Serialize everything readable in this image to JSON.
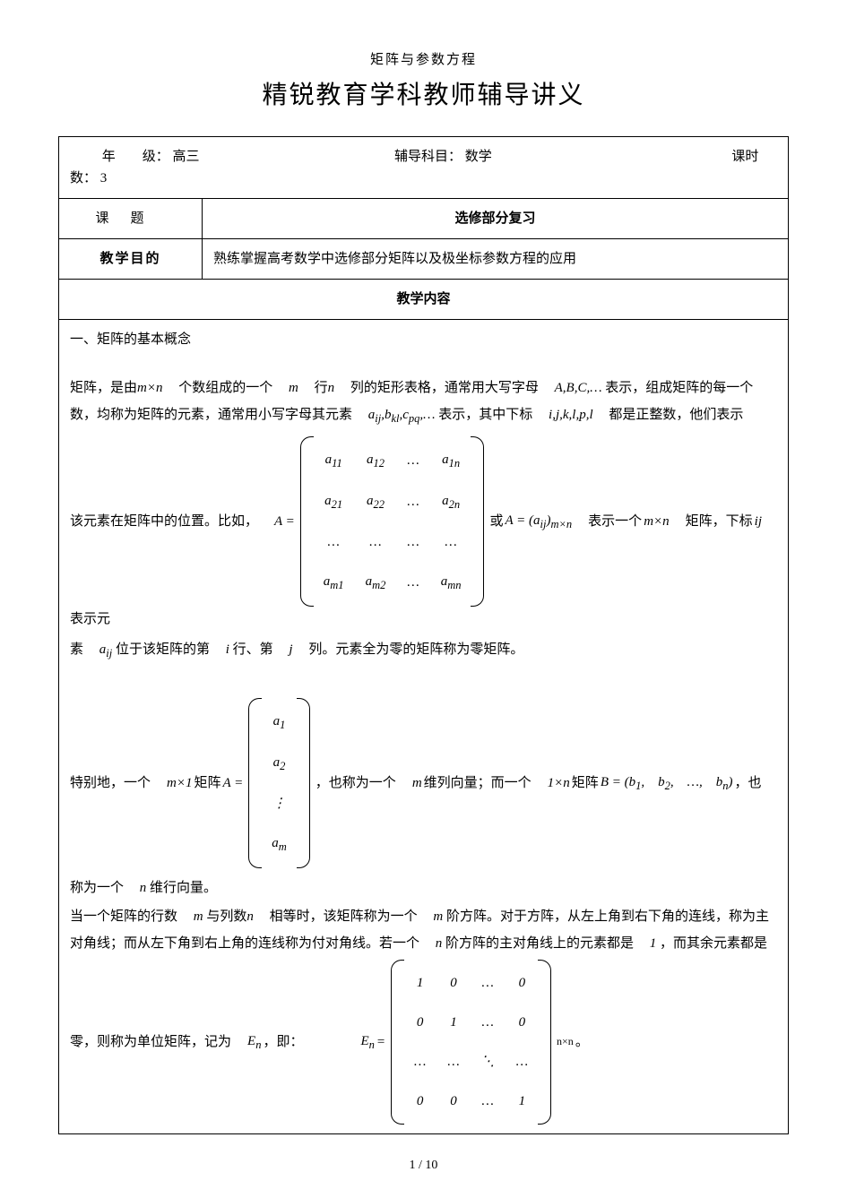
{
  "page": {
    "small_header": "矩阵与参数方程",
    "title": "精锐教育学科教师辅导讲义",
    "footer": "1 / 10"
  },
  "info_row": {
    "grade_label": "年　　级：",
    "grade_value": "高三",
    "subject_label": "辅导科目：",
    "subject_value": "数学",
    "hours_label": "课时数：",
    "hours_value": "3"
  },
  "rows": {
    "topic_label": "课题",
    "topic_value": "选修部分复习",
    "goal_label": "教学目的",
    "goal_value": "熟练掌握高考数学中选修部分矩阵以及极坐标参数方程的应用",
    "content_header": "教学内容"
  },
  "content": {
    "sec1": "一、矩阵的基本概念",
    "p1a": "矩阵，是由",
    "p1b": "个数组成的一个",
    "p1c": "行",
    "p1d": "列的矩形表格，通常用大写字母",
    "p1e": "表示，组成矩阵的每一个",
    "p2a": "数，均称为矩阵的元素，通常用小写字母其元素",
    "p2b": "表示，其中下标",
    "p2c": "都是正整数，他们表示",
    "p3a": "该元素在矩阵中的位置。比如，",
    "p3b": "或",
    "p3c": "表示一个",
    "p3d": "矩阵，下标",
    "p3e": "表示元",
    "p4a": "素",
    "p4b": "位于该矩阵的第",
    "p4c": "行、第",
    "p4d": "列。元素全为零的矩阵称为零矩阵。",
    "p5a": "特别地，一个",
    "p5b": "矩阵",
    "p5c": "，也称为一个",
    "p5d": "维列向量；而一个",
    "p5e": "矩阵",
    "p5f": "，也",
    "p6": "称为一个",
    "p6b": "维行向量。",
    "p7a": "当一个矩阵的行数",
    "p7b": "与列数",
    "p7c": "相等时，该矩阵称为一个",
    "p7d": "阶方阵。对于方阵，从左上角到右下角的连线，称为主",
    "p8a": "对角线；而从左下角到右上角的连线称为付对角线。若一个",
    "p8b": "阶方阵的主对角线上的元素都是",
    "p8c": "，而其余元素都是",
    "p9a": "零，则称为单位矩阵，记为",
    "p9b": "，即："
  },
  "math": {
    "mxn": "m×n",
    "m": "m",
    "n": "n",
    "ABC": "A,B,C,…",
    "aij_etc": "a<sub>ij</sub>,b<sub>kl</sub>,c<sub>pq</sub>,…",
    "ijklpl": "i,j,k,l,p,l",
    "A_eq": "A =",
    "A_paren": "A = (a<sub>ij</sub>)<sub>m×n</sub>",
    "ij": "ij",
    "aij": "a<sub>ij</sub>",
    "i": "i",
    "j": "j",
    "mx1": "m×1",
    "oneXn": "1×n",
    "B_eq": "B = (b<sub>1</sub>,　b<sub>2</sub>,　…,　b<sub>n</sub>)",
    "En": "E<sub>n</sub>",
    "one": "1",
    "nxn_sub": "n×n",
    "matA": {
      "r1": [
        "a<sub>11</sub>",
        "a<sub>12</sub>",
        "…",
        "a<sub>1n</sub>"
      ],
      "r2": [
        "a<sub>21</sub>",
        "a<sub>22</sub>",
        "…",
        "a<sub>2n</sub>"
      ],
      "r3": [
        "…",
        "…",
        "…",
        "…"
      ],
      "r4": [
        "a<sub>m1</sub>",
        "a<sub>m2</sub>",
        "…",
        "a<sub>mn</sub>"
      ]
    },
    "colA": [
      "a<sub>1</sub>",
      "a<sub>2</sub>",
      "⋮",
      "a<sub>m</sub>"
    ],
    "matE": {
      "r1": [
        "1",
        "0",
        "…",
        "0"
      ],
      "r2": [
        "0",
        "1",
        "…",
        "0"
      ],
      "r3": [
        "…",
        "…",
        "⋱",
        "…"
      ],
      "r4": [
        "0",
        "0",
        "…",
        "1"
      ]
    }
  },
  "colors": {
    "text": "#000000",
    "background": "#ffffff",
    "border": "#000000"
  },
  "typography": {
    "body_fontsize": 15,
    "title_fontsize": 28,
    "small_header_fontsize": 15,
    "footer_fontsize": 14
  }
}
